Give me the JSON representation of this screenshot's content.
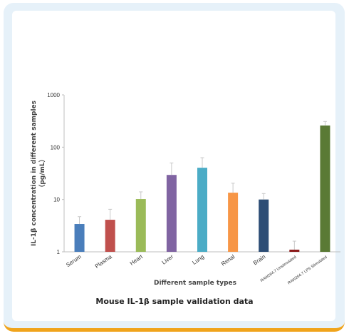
{
  "chart_data": {
    "type": "bar",
    "title": "Mouse IL-1β sample validation data",
    "xlabel": "Different sample types",
    "ylabel_line1": "IL-1β concentration in different samples",
    "ylabel_line2": "（pg/mL）",
    "yscale": "log",
    "ylim": [
      1,
      1000
    ],
    "yticks": [
      1,
      10,
      100,
      1000
    ],
    "ytick_labels": [
      "1",
      "10",
      "100",
      "1000"
    ],
    "categories": [
      "Serum",
      "Plasma",
      "Heart",
      "Liver",
      "Lung",
      "Renal",
      "Brain",
      "RAW264.7 Unstimulated",
      "RAW264.7 LPS Stimulated"
    ],
    "values": [
      3.4,
      4.1,
      10.2,
      29.5,
      40.5,
      13.5,
      10.0,
      1.1,
      260
    ],
    "error_upper": [
      4.7,
      6.5,
      14.0,
      50.0,
      63.0,
      20.5,
      13.0,
      1.6,
      310
    ],
    "colors": [
      "#4a7ebb",
      "#c0504d",
      "#9bbb59",
      "#8064a2",
      "#4bacc6",
      "#f79646",
      "#2c4d75",
      "#8b1a1a",
      "#5a7a35"
    ],
    "grid": false,
    "legend": false
  }
}
